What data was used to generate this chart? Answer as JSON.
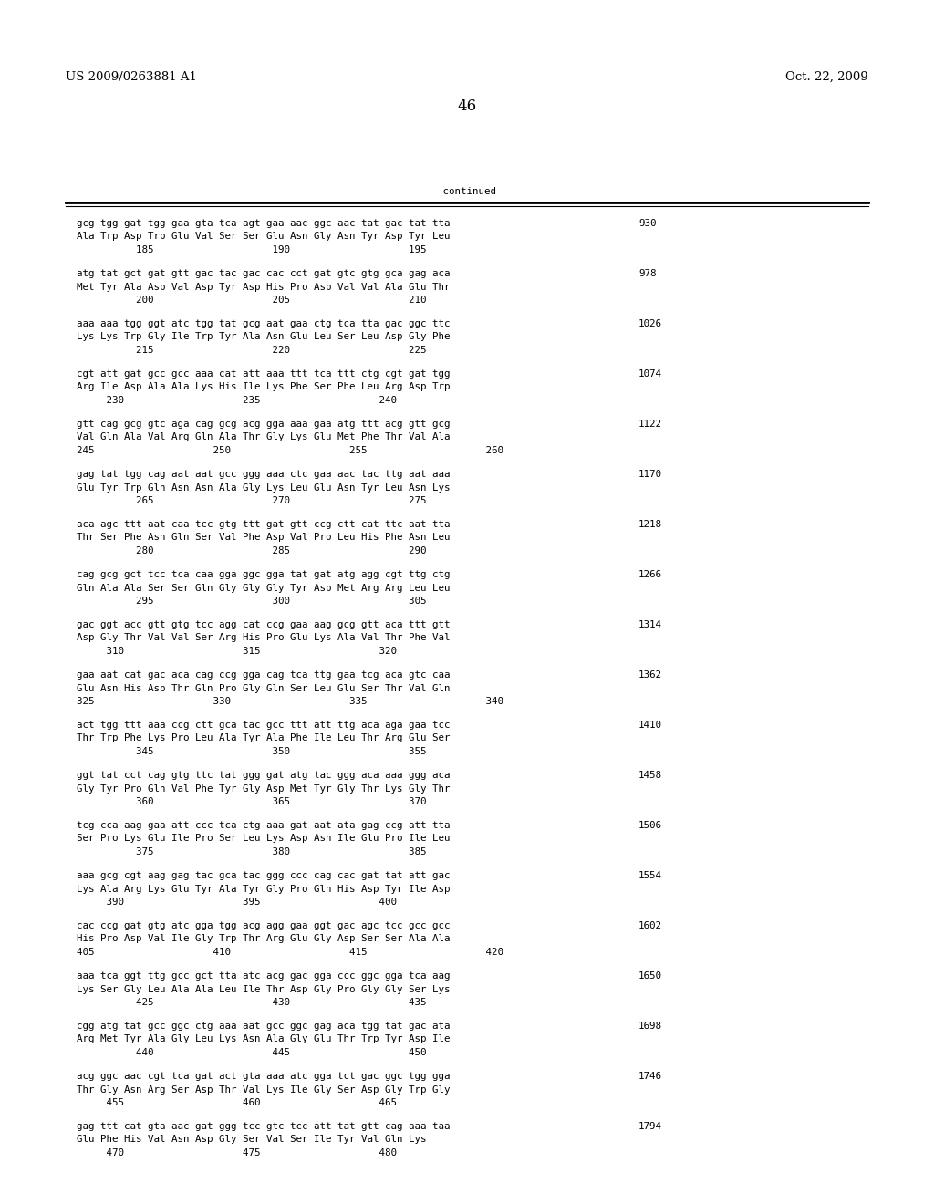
{
  "header_left": "US 2009/0263881 A1",
  "header_right": "Oct. 22, 2009",
  "page_number": "46",
  "continued_label": "-continued",
  "background_color": "#ffffff",
  "text_color": "#000000",
  "font_size_header": 9.5,
  "font_size_body": 7.8,
  "font_size_page": 12,
  "sequences": [
    {
      "dna": "gcg tgg gat tgg gaa gta tca agt gaa aac ggc aac tat gac tat tta",
      "aa": "Ala Trp Asp Trp Glu Val Ser Ser Glu Asn Gly Asn Tyr Asp Tyr Leu",
      "nums": "          185                    190                    195",
      "num_right": "930"
    },
    {
      "dna": "atg tat gct gat gtt gac tac gac cac cct gat gtc gtg gca gag aca",
      "aa": "Met Tyr Ala Asp Val Asp Tyr Asp His Pro Asp Val Val Ala Glu Thr",
      "nums": "          200                    205                    210",
      "num_right": "978"
    },
    {
      "dna": "aaa aaa tgg ggt atc tgg tat gcg aat gaa ctg tca tta gac ggc ttc",
      "aa": "Lys Lys Trp Gly Ile Trp Tyr Ala Asn Glu Leu Ser Leu Asp Gly Phe",
      "nums": "          215                    220                    225",
      "num_right": "1026"
    },
    {
      "dna": "cgt att gat gcc gcc aaa cat att aaa ttt tca ttt ctg cgt gat tgg",
      "aa": "Arg Ile Asp Ala Ala Lys His Ile Lys Phe Ser Phe Leu Arg Asp Trp",
      "nums": "     230                    235                    240",
      "num_right": "1074"
    },
    {
      "dna": "gtt cag gcg gtc aga cag gcg acg gga aaa gaa atg ttt acg gtt gcg",
      "aa": "Val Gln Ala Val Arg Gln Ala Thr Gly Lys Glu Met Phe Thr Val Ala",
      "nums": "245                    250                    255                    260",
      "num_right": "1122"
    },
    {
      "dna": "gag tat tgg cag aat aat gcc ggg aaa ctc gaa aac tac ttg aat aaa",
      "aa": "Glu Tyr Trp Gln Asn Asn Ala Gly Lys Leu Glu Asn Tyr Leu Asn Lys",
      "nums": "          265                    270                    275",
      "num_right": "1170"
    },
    {
      "dna": "aca agc ttt aat caa tcc gtg ttt gat gtt ccg ctt cat ttc aat tta",
      "aa": "Thr Ser Phe Asn Gln Ser Val Phe Asp Val Pro Leu His Phe Asn Leu",
      "nums": "          280                    285                    290",
      "num_right": "1218"
    },
    {
      "dna": "cag gcg gct tcc tca caa gga ggc gga tat gat atg agg cgt ttg ctg",
      "aa": "Gln Ala Ala Ser Ser Gln Gly Gly Gly Tyr Asp Met Arg Arg Leu Leu",
      "nums": "          295                    300                    305",
      "num_right": "1266"
    },
    {
      "dna": "gac ggt acc gtt gtg tcc agg cat ccg gaa aag gcg gtt aca ttt gtt",
      "aa": "Asp Gly Thr Val Val Ser Arg His Pro Glu Lys Ala Val Thr Phe Val",
      "nums": "     310                    315                    320",
      "num_right": "1314"
    },
    {
      "dna": "gaa aat cat gac aca cag ccg gga cag tca ttg gaa tcg aca gtc caa",
      "aa": "Glu Asn His Asp Thr Gln Pro Gly Gln Ser Leu Glu Ser Thr Val Gln",
      "nums": "325                    330                    335                    340",
      "num_right": "1362"
    },
    {
      "dna": "act tgg ttt aaa ccg ctt gca tac gcc ttt att ttg aca aga gaa tcc",
      "aa": "Thr Trp Phe Lys Pro Leu Ala Tyr Ala Phe Ile Leu Thr Arg Glu Ser",
      "nums": "          345                    350                    355",
      "num_right": "1410"
    },
    {
      "dna": "ggt tat cct cag gtg ttc tat ggg gat atg tac ggg aca aaa ggg aca",
      "aa": "Gly Tyr Pro Gln Val Phe Tyr Gly Asp Met Tyr Gly Thr Lys Gly Thr",
      "nums": "          360                    365                    370",
      "num_right": "1458"
    },
    {
      "dna": "tcg cca aag gaa att ccc tca ctg aaa gat aat ata gag ccg att tta",
      "aa": "Ser Pro Lys Glu Ile Pro Ser Leu Lys Asp Asn Ile Glu Pro Ile Leu",
      "nums": "          375                    380                    385",
      "num_right": "1506"
    },
    {
      "dna": "aaa gcg cgt aag gag tac gca tac ggg ccc cag cac gat tat att gac",
      "aa": "Lys Ala Arg Lys Glu Tyr Ala Tyr Gly Pro Gln His Asp Tyr Ile Asp",
      "nums": "     390                    395                    400",
      "num_right": "1554"
    },
    {
      "dna": "cac ccg gat gtg atc gga tgg acg agg gaa ggt gac agc tcc gcc gcc",
      "aa": "His Pro Asp Val Ile Gly Trp Thr Arg Glu Gly Asp Ser Ser Ala Ala",
      "nums": "405                    410                    415                    420",
      "num_right": "1602"
    },
    {
      "dna": "aaa tca ggt ttg gcc gct tta atc acg gac gga ccc ggc gga tca aag",
      "aa": "Lys Ser Gly Leu Ala Ala Leu Ile Thr Asp Gly Pro Gly Gly Ser Lys",
      "nums": "          425                    430                    435",
      "num_right": "1650"
    },
    {
      "dna": "cgg atg tat gcc ggc ctg aaa aat gcc ggc gag aca tgg tat gac ata",
      "aa": "Arg Met Tyr Ala Gly Leu Lys Asn Ala Gly Glu Thr Trp Tyr Asp Ile",
      "nums": "          440                    445                    450",
      "num_right": "1698"
    },
    {
      "dna": "acg ggc aac cgt tca gat act gta aaa atc gga tct gac ggc tgg gga",
      "aa": "Thr Gly Asn Arg Ser Asp Thr Val Lys Ile Gly Ser Asp Gly Trp Gly",
      "nums": "     455                    460                    465",
      "num_right": "1746"
    },
    {
      "dna": "gag ttt cat gta aac gat ggg tcc gtc tcc att tat gtt cag aaa taa",
      "aa": "Glu Phe His Val Asn Asp Gly Ser Val Ser Ile Tyr Val Gln Lys",
      "nums": "     470                    475                    480",
      "num_right": "1794"
    }
  ]
}
